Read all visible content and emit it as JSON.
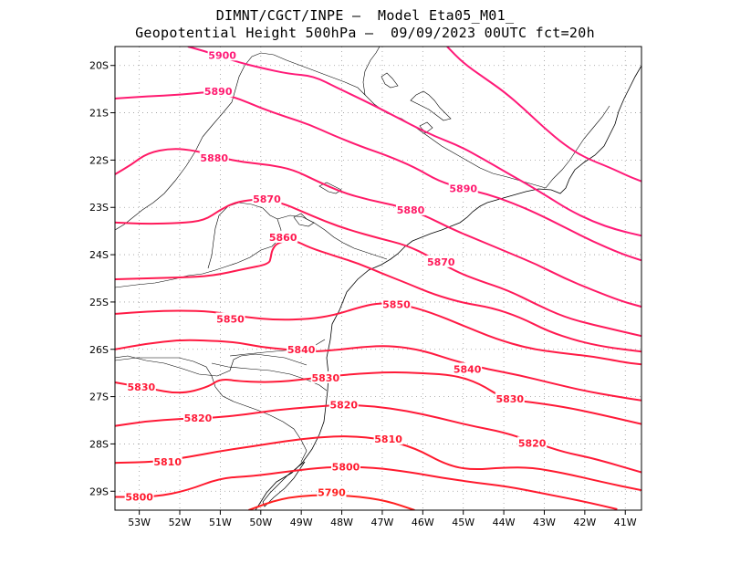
{
  "title_line1": "DIMNT/CGCT/INPE –  Model Eta05_M01_",
  "title_line2": "Geopotential Height 500hPa –  09/09/2023 00UTC fct=20h",
  "map": {
    "lon_range": [
      -53.6,
      -40.6
    ],
    "lat_range": [
      -29.4,
      -19.6
    ],
    "lon_ticks": [
      -53,
      -52,
      -51,
      -50,
      -49,
      -48,
      -47,
      -46,
      -45,
      -44,
      -43,
      -42,
      -41
    ],
    "lon_tick_labels": [
      "53W",
      "52W",
      "51W",
      "50W",
      "49W",
      "48W",
      "47W",
      "46W",
      "45W",
      "44W",
      "43W",
      "42W",
      "41W"
    ],
    "lat_ticks": [
      -20,
      -21,
      -22,
      -23,
      -24,
      -25,
      -26,
      -27,
      -28,
      -29
    ],
    "lat_tick_labels": [
      "20S",
      "21S",
      "22S",
      "23S",
      "24S",
      "25S",
      "26S",
      "27S",
      "28S",
      "29S"
    ],
    "grid": "dotted"
  },
  "contours": [
    {
      "value": 5790,
      "label": "5790",
      "color": "#ff2020",
      "points": [
        [
          -50.3,
          -29.4
        ],
        [
          -49.5,
          -29.15
        ],
        [
          -48.6,
          -29.07
        ],
        [
          -47.7,
          -29.1
        ],
        [
          -46.9,
          -29.2
        ],
        [
          -46.2,
          -29.4
        ]
      ],
      "labels_at": [
        [
          -48.25,
          -29.02
        ]
      ]
    },
    {
      "value": 5800,
      "label": "5800",
      "color": "#ff1a2e",
      "points": [
        [
          -53.6,
          -29.12
        ],
        [
          -52.6,
          -29.12
        ],
        [
          -51.8,
          -28.98
        ],
        [
          -51.0,
          -28.72
        ],
        [
          -50.2,
          -28.68
        ],
        [
          -49.3,
          -28.58
        ],
        [
          -48.3,
          -28.48
        ],
        [
          -47.2,
          -28.5
        ],
        [
          -46.3,
          -28.6
        ],
        [
          -45.5,
          -28.72
        ],
        [
          -44.7,
          -28.82
        ],
        [
          -43.9,
          -28.9
        ],
        [
          -43.0,
          -29.05
        ],
        [
          -42.0,
          -29.22
        ],
        [
          -41.2,
          -29.38
        ]
      ],
      "labels_at": [
        [
          -53.0,
          -29.12
        ],
        [
          -47.9,
          -28.48
        ]
      ]
    },
    {
      "value": 5810,
      "label": "5810",
      "color": "#ff1a2e",
      "points": [
        [
          -53.6,
          -28.4
        ],
        [
          -52.6,
          -28.38
        ],
        [
          -51.8,
          -28.28
        ],
        [
          -51.0,
          -28.15
        ],
        [
          -50.2,
          -28.05
        ],
        [
          -49.4,
          -27.94
        ],
        [
          -48.6,
          -27.86
        ],
        [
          -47.8,
          -27.83
        ],
        [
          -47.0,
          -27.9
        ],
        [
          -46.2,
          -28.08
        ],
        [
          -45.4,
          -28.45
        ],
        [
          -44.8,
          -28.55
        ],
        [
          -44.0,
          -28.5
        ],
        [
          -43.3,
          -28.5
        ],
        [
          -42.5,
          -28.62
        ],
        [
          -41.6,
          -28.8
        ],
        [
          -40.6,
          -28.98
        ]
      ],
      "labels_at": [
        [
          -52.3,
          -28.38
        ],
        [
          -46.85,
          -27.9
        ]
      ]
    },
    {
      "value": 5820,
      "label": "5820",
      "color": "#ff1a38",
      "points": [
        [
          -53.6,
          -27.62
        ],
        [
          -52.8,
          -27.52
        ],
        [
          -52.0,
          -27.47
        ],
        [
          -51.2,
          -27.45
        ],
        [
          -50.4,
          -27.38
        ],
        [
          -49.6,
          -27.28
        ],
        [
          -48.8,
          -27.22
        ],
        [
          -48.0,
          -27.17
        ],
        [
          -47.2,
          -27.2
        ],
        [
          -46.4,
          -27.3
        ],
        [
          -45.6,
          -27.45
        ],
        [
          -44.8,
          -27.62
        ],
        [
          -44.0,
          -27.75
        ],
        [
          -43.2,
          -27.98
        ],
        [
          -42.5,
          -28.18
        ],
        [
          -41.8,
          -28.3
        ],
        [
          -40.6,
          -28.6
        ]
      ],
      "labels_at": [
        [
          -51.55,
          -27.45
        ],
        [
          -47.95,
          -27.17
        ],
        [
          -43.3,
          -27.98
        ]
      ]
    },
    {
      "value": 5830,
      "label": "5830",
      "color": "#ff1a38",
      "points": [
        [
          -53.6,
          -26.7
        ],
        [
          -52.8,
          -26.82
        ],
        [
          -52.0,
          -26.95
        ],
        [
          -51.3,
          -26.8
        ],
        [
          -51.0,
          -26.62
        ],
        [
          -50.5,
          -26.68
        ],
        [
          -49.6,
          -26.7
        ],
        [
          -48.6,
          -26.6
        ],
        [
          -47.7,
          -26.52
        ],
        [
          -46.8,
          -26.48
        ],
        [
          -46.0,
          -26.5
        ],
        [
          -45.2,
          -26.55
        ],
        [
          -44.6,
          -26.72
        ],
        [
          -44.0,
          -27.05
        ],
        [
          -43.3,
          -27.12
        ],
        [
          -42.5,
          -27.22
        ],
        [
          -41.6,
          -27.38
        ],
        [
          -40.6,
          -27.58
        ]
      ],
      "labels_at": [
        [
          -52.95,
          -26.8
        ],
        [
          -48.4,
          -26.6
        ],
        [
          -43.85,
          -27.05
        ]
      ]
    },
    {
      "value": 5840,
      "label": "5840",
      "color": "#ff1a40",
      "points": [
        [
          -53.6,
          -26.0
        ],
        [
          -52.8,
          -25.88
        ],
        [
          -52.0,
          -25.8
        ],
        [
          -51.2,
          -25.82
        ],
        [
          -50.6,
          -25.85
        ],
        [
          -50.0,
          -25.95
        ],
        [
          -49.4,
          -26.0
        ],
        [
          -48.8,
          -26.05
        ],
        [
          -48.2,
          -26.02
        ],
        [
          -47.5,
          -25.95
        ],
        [
          -46.8,
          -25.92
        ],
        [
          -46.0,
          -26.02
        ],
        [
          -45.2,
          -26.25
        ],
        [
          -44.4,
          -26.42
        ],
        [
          -43.6,
          -26.55
        ],
        [
          -42.8,
          -26.72
        ],
        [
          -42.0,
          -26.88
        ],
        [
          -41.2,
          -27.0
        ],
        [
          -40.6,
          -27.08
        ]
      ],
      "labels_at": [
        [
          -49.0,
          -26.0
        ],
        [
          -44.9,
          -26.42
        ]
      ]
    },
    {
      "value": 5850,
      "label": "5850",
      "color": "#ff1a45",
      "points": [
        [
          -53.6,
          -25.25
        ],
        [
          -52.8,
          -25.2
        ],
        [
          -52.0,
          -25.18
        ],
        [
          -51.2,
          -25.2
        ],
        [
          -50.4,
          -25.32
        ],
        [
          -49.6,
          -25.38
        ],
        [
          -48.8,
          -25.36
        ],
        [
          -48.2,
          -25.28
        ],
        [
          -47.6,
          -25.12
        ],
        [
          -47.1,
          -25.02
        ],
        [
          -46.5,
          -25.05
        ],
        [
          -45.8,
          -25.22
        ],
        [
          -45.0,
          -25.5
        ],
        [
          -44.2,
          -25.78
        ],
        [
          -43.4,
          -25.98
        ],
        [
          -42.6,
          -26.08
        ],
        [
          -41.8,
          -26.15
        ],
        [
          -41.0,
          -26.28
        ],
        [
          -40.6,
          -26.32
        ]
      ],
      "labels_at": [
        [
          -50.75,
          -25.36
        ],
        [
          -46.65,
          -25.05
        ]
      ]
    },
    {
      "value": 5860,
      "label": "5860",
      "color": "#ff1a50",
      "points": [
        [
          -53.6,
          -24.52
        ],
        [
          -52.8,
          -24.5
        ],
        [
          -52.0,
          -24.48
        ],
        [
          -51.2,
          -24.45
        ],
        [
          -50.4,
          -24.3
        ],
        [
          -49.8,
          -24.2
        ],
        [
          -49.75,
          -24.05
        ],
        [
          -49.72,
          -23.9
        ],
        [
          -49.6,
          -23.75
        ],
        [
          -49.2,
          -23.68
        ],
        [
          -48.8,
          -23.85
        ],
        [
          -48.2,
          -24.02
        ],
        [
          -47.6,
          -24.18
        ],
        [
          -47.0,
          -24.4
        ],
        [
          -46.4,
          -24.6
        ],
        [
          -45.7,
          -24.85
        ],
        [
          -45.0,
          -25.02
        ],
        [
          -44.3,
          -25.12
        ],
        [
          -43.6,
          -25.32
        ],
        [
          -42.9,
          -25.62
        ],
        [
          -42.2,
          -25.82
        ],
        [
          -41.5,
          -25.95
        ],
        [
          -40.6,
          -26.05
        ]
      ],
      "labels_at": [
        [
          -49.45,
          -23.63
        ]
      ]
    },
    {
      "value": 5870,
      "label": "5870",
      "color": "#ff1a5a",
      "points": [
        [
          -53.6,
          -23.32
        ],
        [
          -52.8,
          -23.35
        ],
        [
          -52.0,
          -23.33
        ],
        [
          -51.4,
          -23.28
        ],
        [
          -51.0,
          -23.05
        ],
        [
          -50.6,
          -22.88
        ],
        [
          -50.0,
          -22.82
        ],
        [
          -49.5,
          -22.9
        ],
        [
          -49.0,
          -23.08
        ],
        [
          -48.4,
          -23.3
        ],
        [
          -47.8,
          -23.48
        ],
        [
          -47.1,
          -23.65
        ],
        [
          -46.4,
          -23.8
        ],
        [
          -45.8,
          -24.05
        ],
        [
          -45.2,
          -24.35
        ],
        [
          -44.6,
          -24.55
        ],
        [
          -43.9,
          -24.75
        ],
        [
          -43.2,
          -25.05
        ],
        [
          -42.5,
          -25.32
        ],
        [
          -41.8,
          -25.48
        ],
        [
          -41.1,
          -25.62
        ],
        [
          -40.6,
          -25.72
        ]
      ],
      "labels_at": [
        [
          -49.85,
          -22.82
        ],
        [
          -45.55,
          -24.15
        ]
      ]
    },
    {
      "value": 5880,
      "label": "5880",
      "color": "#ff1a66",
      "points": [
        [
          -53.6,
          -22.3
        ],
        [
          -53.2,
          -22.1
        ],
        [
          -52.8,
          -21.85
        ],
        [
          -52.2,
          -21.75
        ],
        [
          -51.6,
          -21.8
        ],
        [
          -51.0,
          -21.95
        ],
        [
          -50.4,
          -22.05
        ],
        [
          -49.8,
          -22.1
        ],
        [
          -49.2,
          -22.2
        ],
        [
          -48.6,
          -22.45
        ],
        [
          -48.0,
          -22.68
        ],
        [
          -47.3,
          -22.85
        ],
        [
          -46.6,
          -22.97
        ],
        [
          -46.0,
          -23.15
        ],
        [
          -45.3,
          -23.45
        ],
        [
          -44.6,
          -23.7
        ],
        [
          -43.9,
          -23.95
        ],
        [
          -43.2,
          -24.2
        ],
        [
          -42.5,
          -24.5
        ],
        [
          -41.8,
          -24.75
        ],
        [
          -41.1,
          -24.98
        ],
        [
          -40.6,
          -25.1
        ]
      ],
      "labels_at": [
        [
          -51.15,
          -21.95
        ],
        [
          -46.3,
          -23.05
        ]
      ]
    },
    {
      "value": 5890,
      "label": "5890",
      "color": "#ff1a70",
      "points": [
        [
          -53.6,
          -20.7
        ],
        [
          -52.8,
          -20.65
        ],
        [
          -52.0,
          -20.62
        ],
        [
          -51.2,
          -20.55
        ],
        [
          -50.6,
          -20.68
        ],
        [
          -50.0,
          -20.9
        ],
        [
          -49.4,
          -21.08
        ],
        [
          -48.8,
          -21.25
        ],
        [
          -48.2,
          -21.48
        ],
        [
          -47.5,
          -21.72
        ],
        [
          -46.9,
          -21.9
        ],
        [
          -46.2,
          -22.15
        ],
        [
          -45.6,
          -22.45
        ],
        [
          -45.0,
          -22.6
        ],
        [
          -44.4,
          -22.72
        ],
        [
          -43.8,
          -22.9
        ],
        [
          -43.2,
          -23.12
        ],
        [
          -42.5,
          -23.42
        ],
        [
          -41.8,
          -23.72
        ],
        [
          -41.1,
          -23.98
        ],
        [
          -40.6,
          -24.12
        ]
      ],
      "labels_at": [
        [
          -51.05,
          -20.55
        ],
        [
          -45.0,
          -22.6
        ]
      ]
    },
    {
      "value": 5900,
      "label": "5900",
      "color": "#ff1a78",
      "points": [
        [
          -51.8,
          -19.6
        ],
        [
          -51.3,
          -19.72
        ],
        [
          -50.6,
          -19.92
        ],
        [
          -50.0,
          -20.05
        ],
        [
          -49.3,
          -20.18
        ],
        [
          -48.7,
          -20.22
        ],
        [
          -48.1,
          -20.48
        ],
        [
          -47.5,
          -20.72
        ],
        [
          -46.9,
          -20.98
        ],
        [
          -46.3,
          -21.25
        ],
        [
          -45.7,
          -21.5
        ],
        [
          -45.1,
          -21.7
        ],
        [
          -44.5,
          -21.98
        ],
        [
          -43.9,
          -22.28
        ],
        [
          -43.4,
          -22.52
        ],
        [
          -42.9,
          -22.78
        ],
        [
          -42.4,
          -23.05
        ],
        [
          -41.8,
          -23.3
        ],
        [
          -41.2,
          -23.48
        ],
        [
          -40.6,
          -23.6
        ]
      ],
      "labels_at": [
        [
          -50.95,
          -19.78
        ]
      ]
    },
    {
      "value": 5900,
      "label": "",
      "color": "#ff1a78",
      "points": [
        [
          -45.4,
          -19.6
        ],
        [
          -45.0,
          -19.95
        ],
        [
          -44.5,
          -20.25
        ],
        [
          -44.0,
          -20.55
        ],
        [
          -43.5,
          -20.92
        ],
        [
          -43.0,
          -21.32
        ],
        [
          -42.5,
          -21.68
        ],
        [
          -42.0,
          -21.95
        ],
        [
          -41.4,
          -22.15
        ],
        [
          -40.9,
          -22.35
        ],
        [
          -40.6,
          -22.45
        ]
      ],
      "labels_at": []
    }
  ]
}
